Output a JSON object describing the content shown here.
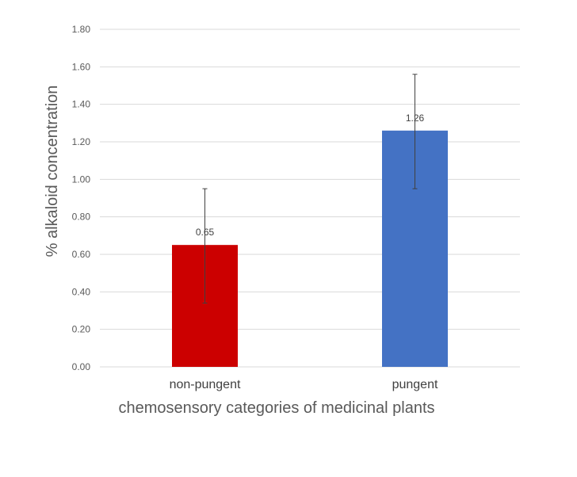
{
  "chart_data": {
    "type": "bar",
    "categories": [
      "non-pungent",
      "pungent"
    ],
    "values": [
      0.65,
      1.26
    ],
    "error_upper": [
      0.95,
      1.56
    ],
    "error_lower": [
      0.34,
      0.95
    ],
    "data_labels": [
      "0.65",
      "1.26"
    ],
    "colors": [
      "#cc0000",
      "#4472c4"
    ],
    "title": "",
    "xlabel": "chemosensory categories of medicinal plants",
    "ylabel": "% alkaloid concentration",
    "ylim": [
      0,
      1.8
    ],
    "yticks": [
      "0.00",
      "0.20",
      "0.40",
      "0.60",
      "0.80",
      "1.00",
      "1.20",
      "1.40",
      "1.60",
      "1.80"
    ],
    "grid": true,
    "legend": "none"
  }
}
